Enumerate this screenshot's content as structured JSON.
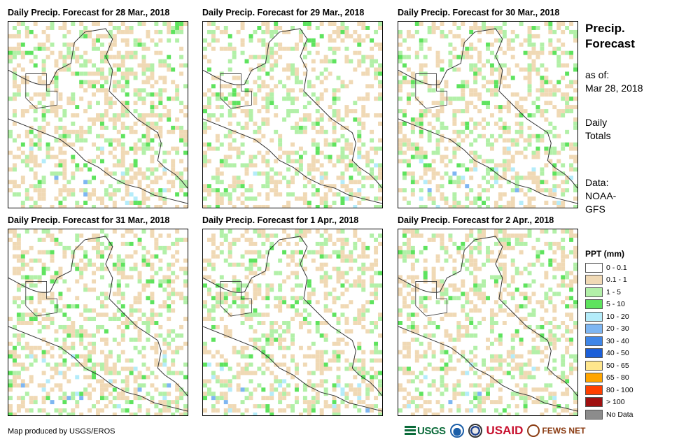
{
  "panels": [
    {
      "title": "Daily Precip. Forecast for 28 Mar., 2018"
    },
    {
      "title": "Daily Precip. Forecast for 29 Mar., 2018"
    },
    {
      "title": "Daily Precip. Forecast for 30 Mar., 2018"
    },
    {
      "title": "Daily Precip. Forecast for 31 Mar., 2018"
    },
    {
      "title": "Daily Precip. Forecast for 1 Apr., 2018"
    },
    {
      "title": "Daily Precip. Forecast for 2 Apr., 2018"
    }
  ],
  "sidebar": {
    "title_line1": "Precip.",
    "title_line2": "Forecast",
    "asof_label": "as of:",
    "asof_date": "Mar 28, 2018",
    "period_line1": "Daily",
    "period_line2": "Totals",
    "data_label": "Data:",
    "data_source_line1": "NOAA-",
    "data_source_line2": "GFS"
  },
  "legend": {
    "title": "PPT (mm)",
    "items": [
      {
        "label": "0 - 0.1",
        "color": "#ffffff"
      },
      {
        "label": "0.1 - 1",
        "color": "#f0d9b5"
      },
      {
        "label": "1 - 5",
        "color": "#b2f0a8"
      },
      {
        "label": "5 - 10",
        "color": "#5ee35e"
      },
      {
        "label": "10 - 20",
        "color": "#b4ecfa"
      },
      {
        "label": "20 - 30",
        "color": "#7eb6f2"
      },
      {
        "label": "30 - 40",
        "color": "#3f86e8"
      },
      {
        "label": "40 - 50",
        "color": "#1c5fd8"
      },
      {
        "label": "50 - 65",
        "color": "#ffe68c"
      },
      {
        "label": "65 - 80",
        "color": "#ffa500"
      },
      {
        "label": "80 - 100",
        "color": "#ff4000"
      },
      {
        "label": "> 100",
        "color": "#a01010"
      },
      {
        "label": "No Data",
        "color": "#8c8c8c"
      }
    ]
  },
  "footer": {
    "credit": "Map produced by USGS/EROS",
    "logos": [
      "USGS",
      "NOAA",
      "USAID",
      "FEWS NET"
    ]
  }
}
